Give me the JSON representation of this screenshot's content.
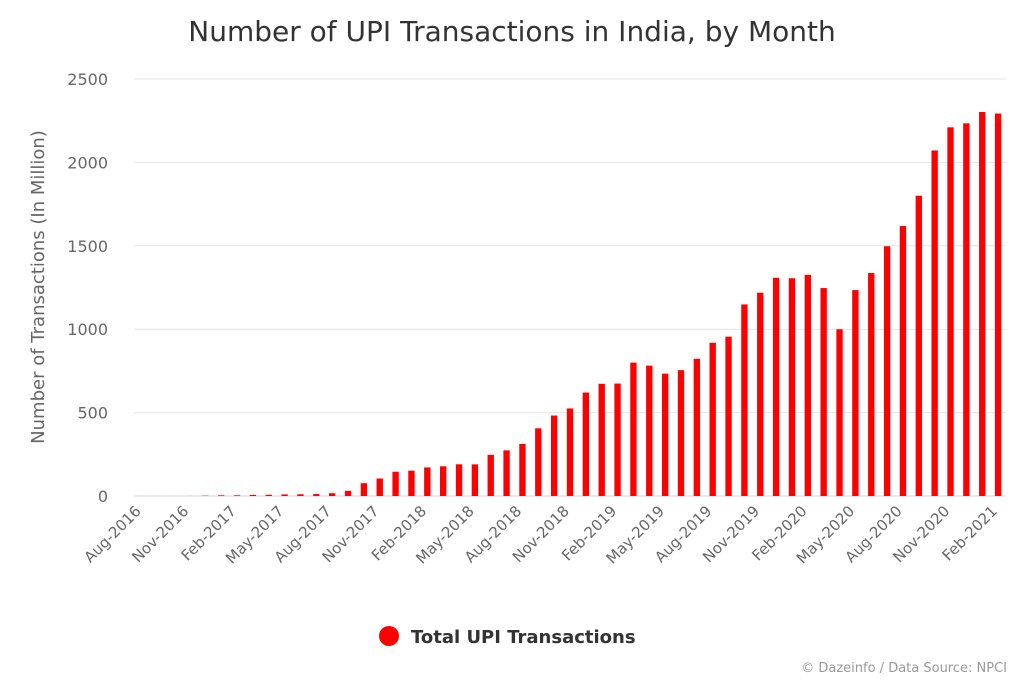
{
  "chart_data": {
    "type": "bar",
    "title": "Number of UPI Transactions in India, by Month",
    "xlabel": "",
    "ylabel": "Number of Transactions (In Million)",
    "ylim": [
      0,
      2500
    ],
    "yticks": [
      "0",
      "500",
      "1000",
      "1500",
      "2000",
      "2500"
    ],
    "xtick_labels": [
      "Aug-2016",
      "Nov-2016",
      "Feb-2017",
      "May-2017",
      "Aug-2017",
      "Nov-2017",
      "Feb-2018",
      "May-2018",
      "Aug-2018",
      "Nov-2018",
      "Feb-2019",
      "May-2019",
      "Aug-2019",
      "Nov-2019",
      "Feb-2020",
      "May-2020",
      "Aug-2020",
      "Nov-2020",
      "Feb-2021"
    ],
    "grid": true,
    "legend_position": "bottom-center",
    "bar_color": "#ff0000",
    "categories": [
      "Aug-2016",
      "Sep-2016",
      "Oct-2016",
      "Nov-2016",
      "Dec-2016",
      "Jan-2017",
      "Feb-2017",
      "Mar-2017",
      "Apr-2017",
      "May-2017",
      "Jun-2017",
      "Jul-2017",
      "Aug-2017",
      "Sep-2017",
      "Oct-2017",
      "Nov-2017",
      "Dec-2017",
      "Jan-2018",
      "Feb-2018",
      "Mar-2018",
      "Apr-2018",
      "May-2018",
      "Jun-2018",
      "Jul-2018",
      "Aug-2018",
      "Sep-2018",
      "Oct-2018",
      "Nov-2018",
      "Dec-2018",
      "Jan-2019",
      "Feb-2019",
      "Mar-2019",
      "Apr-2019",
      "May-2019",
      "Jun-2019",
      "Jul-2019",
      "Aug-2019",
      "Sep-2019",
      "Oct-2019",
      "Nov-2019",
      "Dec-2019",
      "Jan-2020",
      "Feb-2020",
      "Mar-2020",
      "Apr-2020",
      "May-2020",
      "Jun-2020",
      "Jul-2020",
      "Aug-2020",
      "Sep-2020",
      "Oct-2020",
      "Nov-2020",
      "Dec-2020",
      "Jan-2021",
      "Feb-2021"
    ],
    "series": [
      {
        "name": "Total UPI Transactions",
        "color": "#ff0000",
        "values": [
          0.1,
          0.1,
          0.1,
          0.3,
          2,
          4.2,
          4.2,
          6.4,
          7.2,
          9.4,
          10.4,
          11.6,
          16.8,
          30.9,
          76.8,
          105,
          145.6,
          151.8,
          171.4,
          178.1,
          190,
          189.5,
          246.4,
          273.8,
          312,
          405.9,
          482.4,
          524.9,
          620.1,
          672.7,
          674.2,
          799.5,
          781.7,
          733.5,
          754.5,
          822.4,
          918.4,
          955,
          1148.5,
          1218.8,
          1308.4,
          1305.5,
          1325.7,
          1246.8,
          999.6,
          1234.5,
          1336.9,
          1497.4,
          1618.8,
          1800.3,
          2071.6,
          2210.2,
          2234.2,
          2302.3,
          2292.9
        ]
      }
    ]
  },
  "legend": {
    "label": "Total UPI Transactions",
    "marker_color": "#ff0000"
  },
  "credit": "© Dazeinfo / Data Source: NPCI"
}
